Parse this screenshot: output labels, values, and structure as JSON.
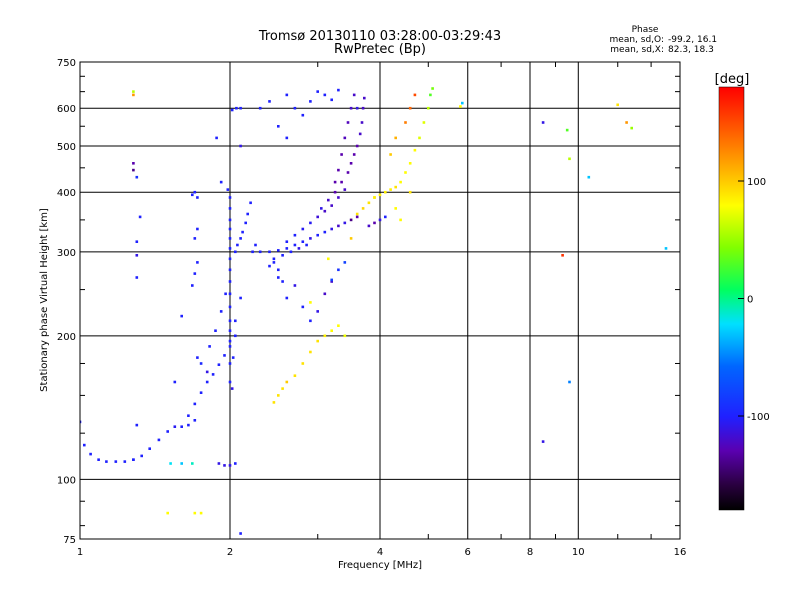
{
  "chart_data": {
    "type": "scatter",
    "title": "Tromsø 20130110 03:28:00-03:29:43",
    "subtitle": "RwPretec (Bp)",
    "xlabel": "Frequency [MHz]",
    "ylabel": "Stationary phase Virtual Height [km]",
    "x_scale": "log",
    "y_scale": "log",
    "xlim": [
      1,
      16
    ],
    "ylim": [
      75,
      750
    ],
    "x_ticks": [
      1,
      2,
      4,
      6,
      8,
      10,
      16
    ],
    "y_ticks": [
      75,
      100,
      200,
      300,
      400,
      500,
      600,
      750
    ],
    "grid": true,
    "stats": {
      "heading": "Phase",
      "o_label": "mean, sd,O:",
      "o_value": "-99.2, 16.1",
      "x_label": "mean, sd,X:",
      "x_value": "82.3, 18.3"
    },
    "colorbar": {
      "label": "[deg]",
      "ticks": [
        100,
        0,
        -100
      ],
      "range": [
        -180,
        180
      ]
    },
    "series": [
      {
        "points": [
          [
            1.0,
            132,
            -100
          ],
          [
            1.02,
            118,
            -100
          ],
          [
            1.05,
            113,
            -100
          ],
          [
            1.09,
            110,
            -100
          ],
          [
            1.13,
            109,
            -100
          ],
          [
            1.18,
            109,
            -100
          ],
          [
            1.23,
            109,
            -100
          ],
          [
            1.28,
            110,
            -100
          ],
          [
            1.33,
            112,
            -100
          ],
          [
            1.38,
            116,
            -100
          ],
          [
            1.44,
            121,
            -100
          ],
          [
            1.5,
            126,
            -100
          ],
          [
            1.55,
            129,
            -105
          ],
          [
            1.6,
            129,
            -100
          ],
          [
            1.65,
            130,
            -100
          ],
          [
            1.7,
            133,
            -100
          ],
          [
            1.52,
            108,
            -20
          ],
          [
            1.6,
            108,
            -30
          ],
          [
            1.68,
            108,
            -10
          ],
          [
            1.9,
            108,
            -110
          ],
          [
            1.95,
            107,
            -110
          ],
          [
            2.0,
            107,
            -110
          ],
          [
            2.05,
            108,
            -100
          ],
          [
            1.65,
            136,
            -100
          ],
          [
            1.7,
            144,
            -100
          ],
          [
            1.75,
            152,
            -100
          ],
          [
            1.8,
            160,
            -100
          ],
          [
            1.85,
            166,
            -100
          ],
          [
            1.9,
            174,
            -100
          ],
          [
            1.95,
            182,
            -100
          ],
          [
            2.0,
            195,
            -100
          ],
          [
            2.05,
            215,
            -100
          ],
          [
            2.1,
            240,
            -100
          ],
          [
            1.72,
            180,
            -100
          ],
          [
            1.75,
            175,
            -95
          ],
          [
            1.8,
            168,
            -110
          ],
          [
            1.82,
            190,
            -100
          ],
          [
            1.87,
            205,
            -100
          ],
          [
            1.92,
            225,
            -100
          ],
          [
            1.96,
            245,
            -100
          ],
          [
            2.0,
            160,
            -100
          ],
          [
            2.0,
            175,
            -100
          ],
          [
            2.0,
            190,
            -100
          ],
          [
            2.0,
            205,
            -100
          ],
          [
            2.0,
            215,
            -100
          ],
          [
            2.0,
            230,
            -100
          ],
          [
            2.0,
            245,
            -100
          ],
          [
            2.0,
            260,
            -100
          ],
          [
            2.0,
            275,
            -100
          ],
          [
            2.0,
            290,
            -100
          ],
          [
            2.0,
            305,
            -100
          ],
          [
            2.0,
            320,
            -100
          ],
          [
            2.0,
            335,
            -100
          ],
          [
            2.0,
            350,
            -100
          ],
          [
            2.0,
            370,
            -100
          ],
          [
            2.0,
            390,
            -100
          ],
          [
            2.02,
            155,
            -110
          ],
          [
            2.03,
            180,
            -100
          ],
          [
            2.05,
            200,
            -100
          ],
          [
            2.05,
            300,
            -100
          ],
          [
            2.07,
            310,
            -100
          ],
          [
            2.1,
            320,
            -100
          ],
          [
            2.12,
            330,
            -100
          ],
          [
            2.15,
            345,
            -100
          ],
          [
            2.17,
            360,
            -100
          ],
          [
            2.2,
            380,
            -100
          ],
          [
            2.22,
            300,
            -100
          ],
          [
            2.25,
            310,
            -100
          ],
          [
            1.68,
            255,
            -100
          ],
          [
            1.7,
            270,
            -100
          ],
          [
            1.72,
            285,
            -100
          ],
          [
            1.7,
            320,
            -100
          ],
          [
            1.72,
            335,
            -100
          ],
          [
            1.68,
            395,
            -100
          ],
          [
            1.7,
            400,
            -100
          ],
          [
            1.72,
            390,
            -100
          ],
          [
            1.3,
            315,
            -100
          ],
          [
            1.3,
            295,
            -110
          ],
          [
            1.3,
            265,
            -100
          ],
          [
            1.32,
            355,
            -100
          ],
          [
            1.3,
            130,
            -100
          ],
          [
            1.28,
            110,
            -100
          ],
          [
            1.28,
            460,
            -130
          ],
          [
            1.28,
            445,
            -140
          ],
          [
            1.3,
            430,
            -90
          ],
          [
            1.28,
            640,
            120
          ],
          [
            1.28,
            650,
            60
          ],
          [
            1.88,
            520,
            -100
          ],
          [
            2.02,
            595,
            -100
          ],
          [
            2.06,
            600,
            -100
          ],
          [
            2.1,
            600,
            -100
          ],
          [
            2.1,
            500,
            -110
          ],
          [
            1.92,
            420,
            -100
          ],
          [
            1.98,
            405,
            -100
          ],
          [
            1.55,
            160,
            -100
          ],
          [
            1.6,
            220,
            -100
          ],
          [
            2.3,
            300,
            -100
          ],
          [
            2.4,
            300,
            -100
          ],
          [
            2.5,
            302,
            -100
          ],
          [
            2.6,
            305,
            -100
          ],
          [
            2.7,
            310,
            -100
          ],
          [
            2.8,
            315,
            -100
          ],
          [
            2.9,
            320,
            -110
          ],
          [
            3.0,
            325,
            -100
          ],
          [
            3.1,
            330,
            -100
          ],
          [
            3.2,
            335,
            -110
          ],
          [
            3.3,
            340,
            -120
          ],
          [
            3.4,
            345,
            -110
          ],
          [
            2.45,
            285,
            -100
          ],
          [
            2.55,
            295,
            -100
          ],
          [
            2.65,
            300,
            -100
          ],
          [
            2.75,
            305,
            -110
          ],
          [
            2.85,
            310,
            -100
          ],
          [
            2.6,
            315,
            -100
          ],
          [
            2.7,
            325,
            -100
          ],
          [
            2.8,
            335,
            -105
          ],
          [
            2.9,
            345,
            -105
          ],
          [
            3.0,
            355,
            -115
          ],
          [
            3.1,
            365,
            -120
          ],
          [
            3.2,
            375,
            -120
          ],
          [
            3.3,
            390,
            -120
          ],
          [
            3.4,
            405,
            -120
          ],
          [
            3.05,
            370,
            -110
          ],
          [
            3.15,
            385,
            -120
          ],
          [
            3.25,
            400,
            -130
          ],
          [
            3.35,
            420,
            -130
          ],
          [
            3.45,
            440,
            -130
          ],
          [
            3.5,
            460,
            -130
          ],
          [
            3.55,
            480,
            -130
          ],
          [
            3.6,
            500,
            -130
          ],
          [
            3.65,
            530,
            -120
          ],
          [
            3.68,
            560,
            -120
          ],
          [
            3.7,
            600,
            -120
          ],
          [
            3.72,
            630,
            -120
          ],
          [
            3.55,
            640,
            -120
          ],
          [
            3.5,
            600,
            -120
          ],
          [
            3.45,
            560,
            -125
          ],
          [
            3.4,
            520,
            -125
          ],
          [
            3.35,
            480,
            -130
          ],
          [
            3.3,
            445,
            -130
          ],
          [
            3.25,
            420,
            -130
          ],
          [
            3.6,
            360,
            90
          ],
          [
            3.7,
            370,
            95
          ],
          [
            3.8,
            380,
            90
          ],
          [
            3.9,
            390,
            90
          ],
          [
            4.0,
            395,
            85
          ],
          [
            4.1,
            400,
            85
          ],
          [
            4.2,
            405,
            85
          ],
          [
            4.3,
            410,
            90
          ],
          [
            4.4,
            420,
            80
          ],
          [
            4.5,
            440,
            80
          ],
          [
            4.6,
            460,
            80
          ],
          [
            4.7,
            490,
            80
          ],
          [
            4.8,
            520,
            70
          ],
          [
            4.9,
            560,
            70
          ],
          [
            5.0,
            600,
            60
          ],
          [
            5.05,
            640,
            30
          ],
          [
            5.1,
            660,
            40
          ],
          [
            3.8,
            340,
            -120
          ],
          [
            3.9,
            345,
            -130
          ],
          [
            4.0,
            350,
            -110
          ],
          [
            4.1,
            355,
            -100
          ],
          [
            3.5,
            350,
            -140
          ],
          [
            3.6,
            355,
            -130
          ],
          [
            4.2,
            480,
            100
          ],
          [
            4.3,
            520,
            110
          ],
          [
            4.5,
            560,
            130
          ],
          [
            4.6,
            600,
            140
          ],
          [
            4.7,
            640,
            150
          ],
          [
            3.6,
            600,
            -110
          ],
          [
            2.6,
            640,
            -100
          ],
          [
            2.7,
            600,
            -100
          ],
          [
            2.8,
            580,
            -100
          ],
          [
            2.9,
            620,
            -100
          ],
          [
            3.0,
            650,
            -100
          ],
          [
            3.1,
            640,
            -100
          ],
          [
            3.2,
            625,
            -100
          ],
          [
            3.3,
            655,
            -100
          ],
          [
            2.3,
            600,
            -100
          ],
          [
            2.4,
            620,
            -100
          ],
          [
            2.5,
            550,
            -100
          ],
          [
            2.6,
            520,
            -100
          ],
          [
            2.45,
            145,
            90
          ],
          [
            2.5,
            150,
            90
          ],
          [
            2.55,
            155,
            90
          ],
          [
            2.6,
            160,
            100
          ],
          [
            2.7,
            165,
            90
          ],
          [
            2.8,
            175,
            90
          ],
          [
            2.9,
            185,
            90
          ],
          [
            3.0,
            195,
            90
          ],
          [
            3.1,
            200,
            85
          ],
          [
            3.2,
            205,
            80
          ],
          [
            3.3,
            210,
            80
          ],
          [
            3.4,
            200,
            75
          ],
          [
            2.6,
            240,
            -100
          ],
          [
            2.7,
            255,
            -110
          ],
          [
            2.8,
            230,
            -100
          ],
          [
            2.9,
            215,
            -100
          ],
          [
            3.0,
            225,
            -110
          ],
          [
            3.1,
            245,
            -120
          ],
          [
            3.2,
            260,
            -120
          ],
          [
            3.3,
            275,
            -90
          ],
          [
            3.4,
            285,
            -80
          ],
          [
            2.5,
            275,
            -100
          ],
          [
            2.55,
            260,
            -100
          ],
          [
            2.4,
            280,
            -100
          ],
          [
            2.45,
            290,
            -100
          ],
          [
            2.5,
            265,
            -100
          ],
          [
            2.1,
            77,
            -100
          ],
          [
            1.5,
            85,
            80
          ],
          [
            1.7,
            85,
            80
          ],
          [
            1.75,
            85,
            80
          ],
          [
            5.8,
            605,
            80
          ],
          [
            5.85,
            615,
            -30
          ],
          [
            8.5,
            560,
            -110
          ],
          [
            9.5,
            540,
            30
          ],
          [
            9.6,
            470,
            60
          ],
          [
            12.5,
            560,
            120
          ],
          [
            12.8,
            545,
            50
          ],
          [
            12.0,
            610,
            90
          ],
          [
            10.5,
            430,
            -30
          ],
          [
            15.0,
            305,
            -30
          ],
          [
            9.3,
            295,
            160
          ],
          [
            9.6,
            160,
            -50
          ],
          [
            8.5,
            120,
            -110
          ],
          [
            2.9,
            235,
            80
          ],
          [
            3.2,
            262,
            -80
          ],
          [
            3.15,
            290,
            80
          ],
          [
            3.5,
            320,
            100
          ],
          [
            3.9,
            390,
            85
          ],
          [
            4.3,
            370,
            80
          ],
          [
            4.6,
            400,
            90
          ],
          [
            4.4,
            350,
            80
          ]
        ]
      }
    ]
  }
}
